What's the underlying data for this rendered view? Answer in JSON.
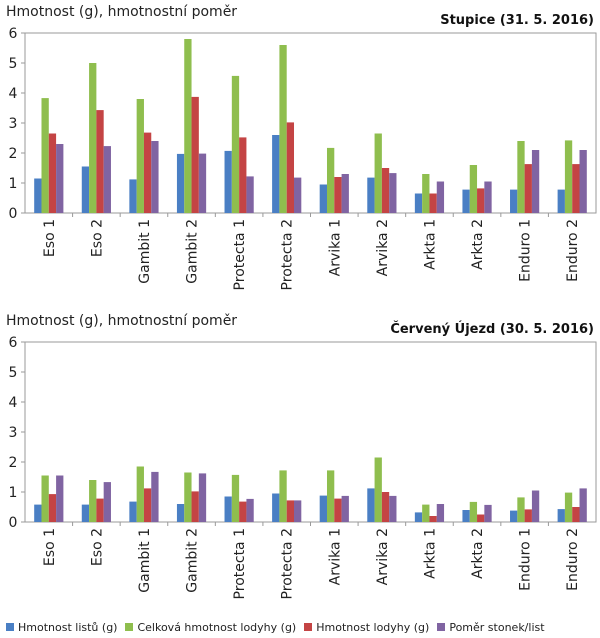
{
  "legend": [
    {
      "name": "Hmotnost listů (g)",
      "color": "#4a7fc4"
    },
    {
      "name": "Celková hmotnost lodyhy (g)",
      "color": "#8fbe4e"
    },
    {
      "name": "Hmotnost lodyhy (g)",
      "color": "#c44444"
    },
    {
      "name": "Poměr stonek/list",
      "color": "#8064a2"
    }
  ],
  "chart_data": [
    {
      "type": "bar",
      "title": "Stupice (31. 5. 2016)",
      "ylabel": "Hmotnost (g), hmotnostní poměr",
      "xlabel": "",
      "ylim": [
        0,
        6
      ],
      "yticks": [
        "0",
        "1",
        "2",
        "3",
        "4",
        "5",
        "6"
      ],
      "categories": [
        "Eso 1",
        "Eso 2",
        "Gambit 1",
        "Gambit 2",
        "Protecta 1",
        "Protecta 2",
        "Arvika 1",
        "Arvika 2",
        "Arkta 1",
        "Arkta 2",
        "Enduro 1",
        "Enduro 2"
      ],
      "series": [
        {
          "name": "Hmotnost listů (g)",
          "values": [
            1.15,
            1.55,
            1.12,
            1.97,
            2.07,
            2.6,
            0.95,
            1.18,
            0.65,
            0.78,
            0.78,
            0.78
          ]
        },
        {
          "name": "Hmotnost lodyhy (g)",
          "values": [
            2.65,
            3.43,
            2.68,
            3.87,
            2.52,
            3.02,
            1.2,
            1.5,
            0.65,
            0.82,
            1.63,
            1.63
          ]
        },
        {
          "name": "Celková hmotnost lodyhy (g)",
          "values": [
            3.83,
            5.0,
            3.8,
            5.8,
            4.57,
            5.6,
            2.17,
            2.65,
            1.3,
            1.6,
            2.4,
            2.42
          ]
        },
        {
          "name": "Poměr stonek/list",
          "values": [
            2.3,
            2.23,
            2.4,
            1.98,
            1.22,
            1.18,
            1.3,
            1.33,
            1.05,
            1.05,
            2.1,
            2.1
          ]
        }
      ]
    },
    {
      "type": "bar",
      "title": "Červený Újezd (30. 5. 2016)",
      "ylabel": "Hmotnost (g), hmotnostní poměr",
      "xlabel": "",
      "ylim": [
        0,
        6
      ],
      "yticks": [
        "0",
        "1",
        "2",
        "3",
        "4",
        "5",
        "6"
      ],
      "categories": [
        "Eso 1",
        "Eso 2",
        "Gambit 1",
        "Gambit 2",
        "Protecta 1",
        "Protecta 2",
        "Arvika 1",
        "Arvika 2",
        "Arkta 1",
        "Arkta 2",
        "Enduro 1",
        "Enduro 2"
      ],
      "series": [
        {
          "name": "Hmotnost listů (g)",
          "values": [
            0.58,
            0.58,
            0.68,
            0.6,
            0.85,
            0.95,
            0.88,
            1.12,
            0.32,
            0.4,
            0.38,
            0.43
          ]
        },
        {
          "name": "Hmotnost lodyhy (g)",
          "values": [
            0.93,
            0.78,
            1.12,
            1.02,
            0.68,
            0.72,
            0.78,
            1.0,
            0.2,
            0.25,
            0.42,
            0.5
          ]
        },
        {
          "name": "Celková hmotnost lodyhy (g)",
          "values": [
            1.55,
            1.4,
            1.85,
            1.65,
            1.57,
            1.72,
            1.72,
            2.15,
            0.58,
            0.67,
            0.82,
            0.98
          ]
        },
        {
          "name": "Poměr stonek/list",
          "values": [
            1.55,
            1.33,
            1.67,
            1.62,
            0.77,
            0.72,
            0.87,
            0.87,
            0.6,
            0.57,
            1.05,
            1.12
          ]
        }
      ]
    }
  ]
}
